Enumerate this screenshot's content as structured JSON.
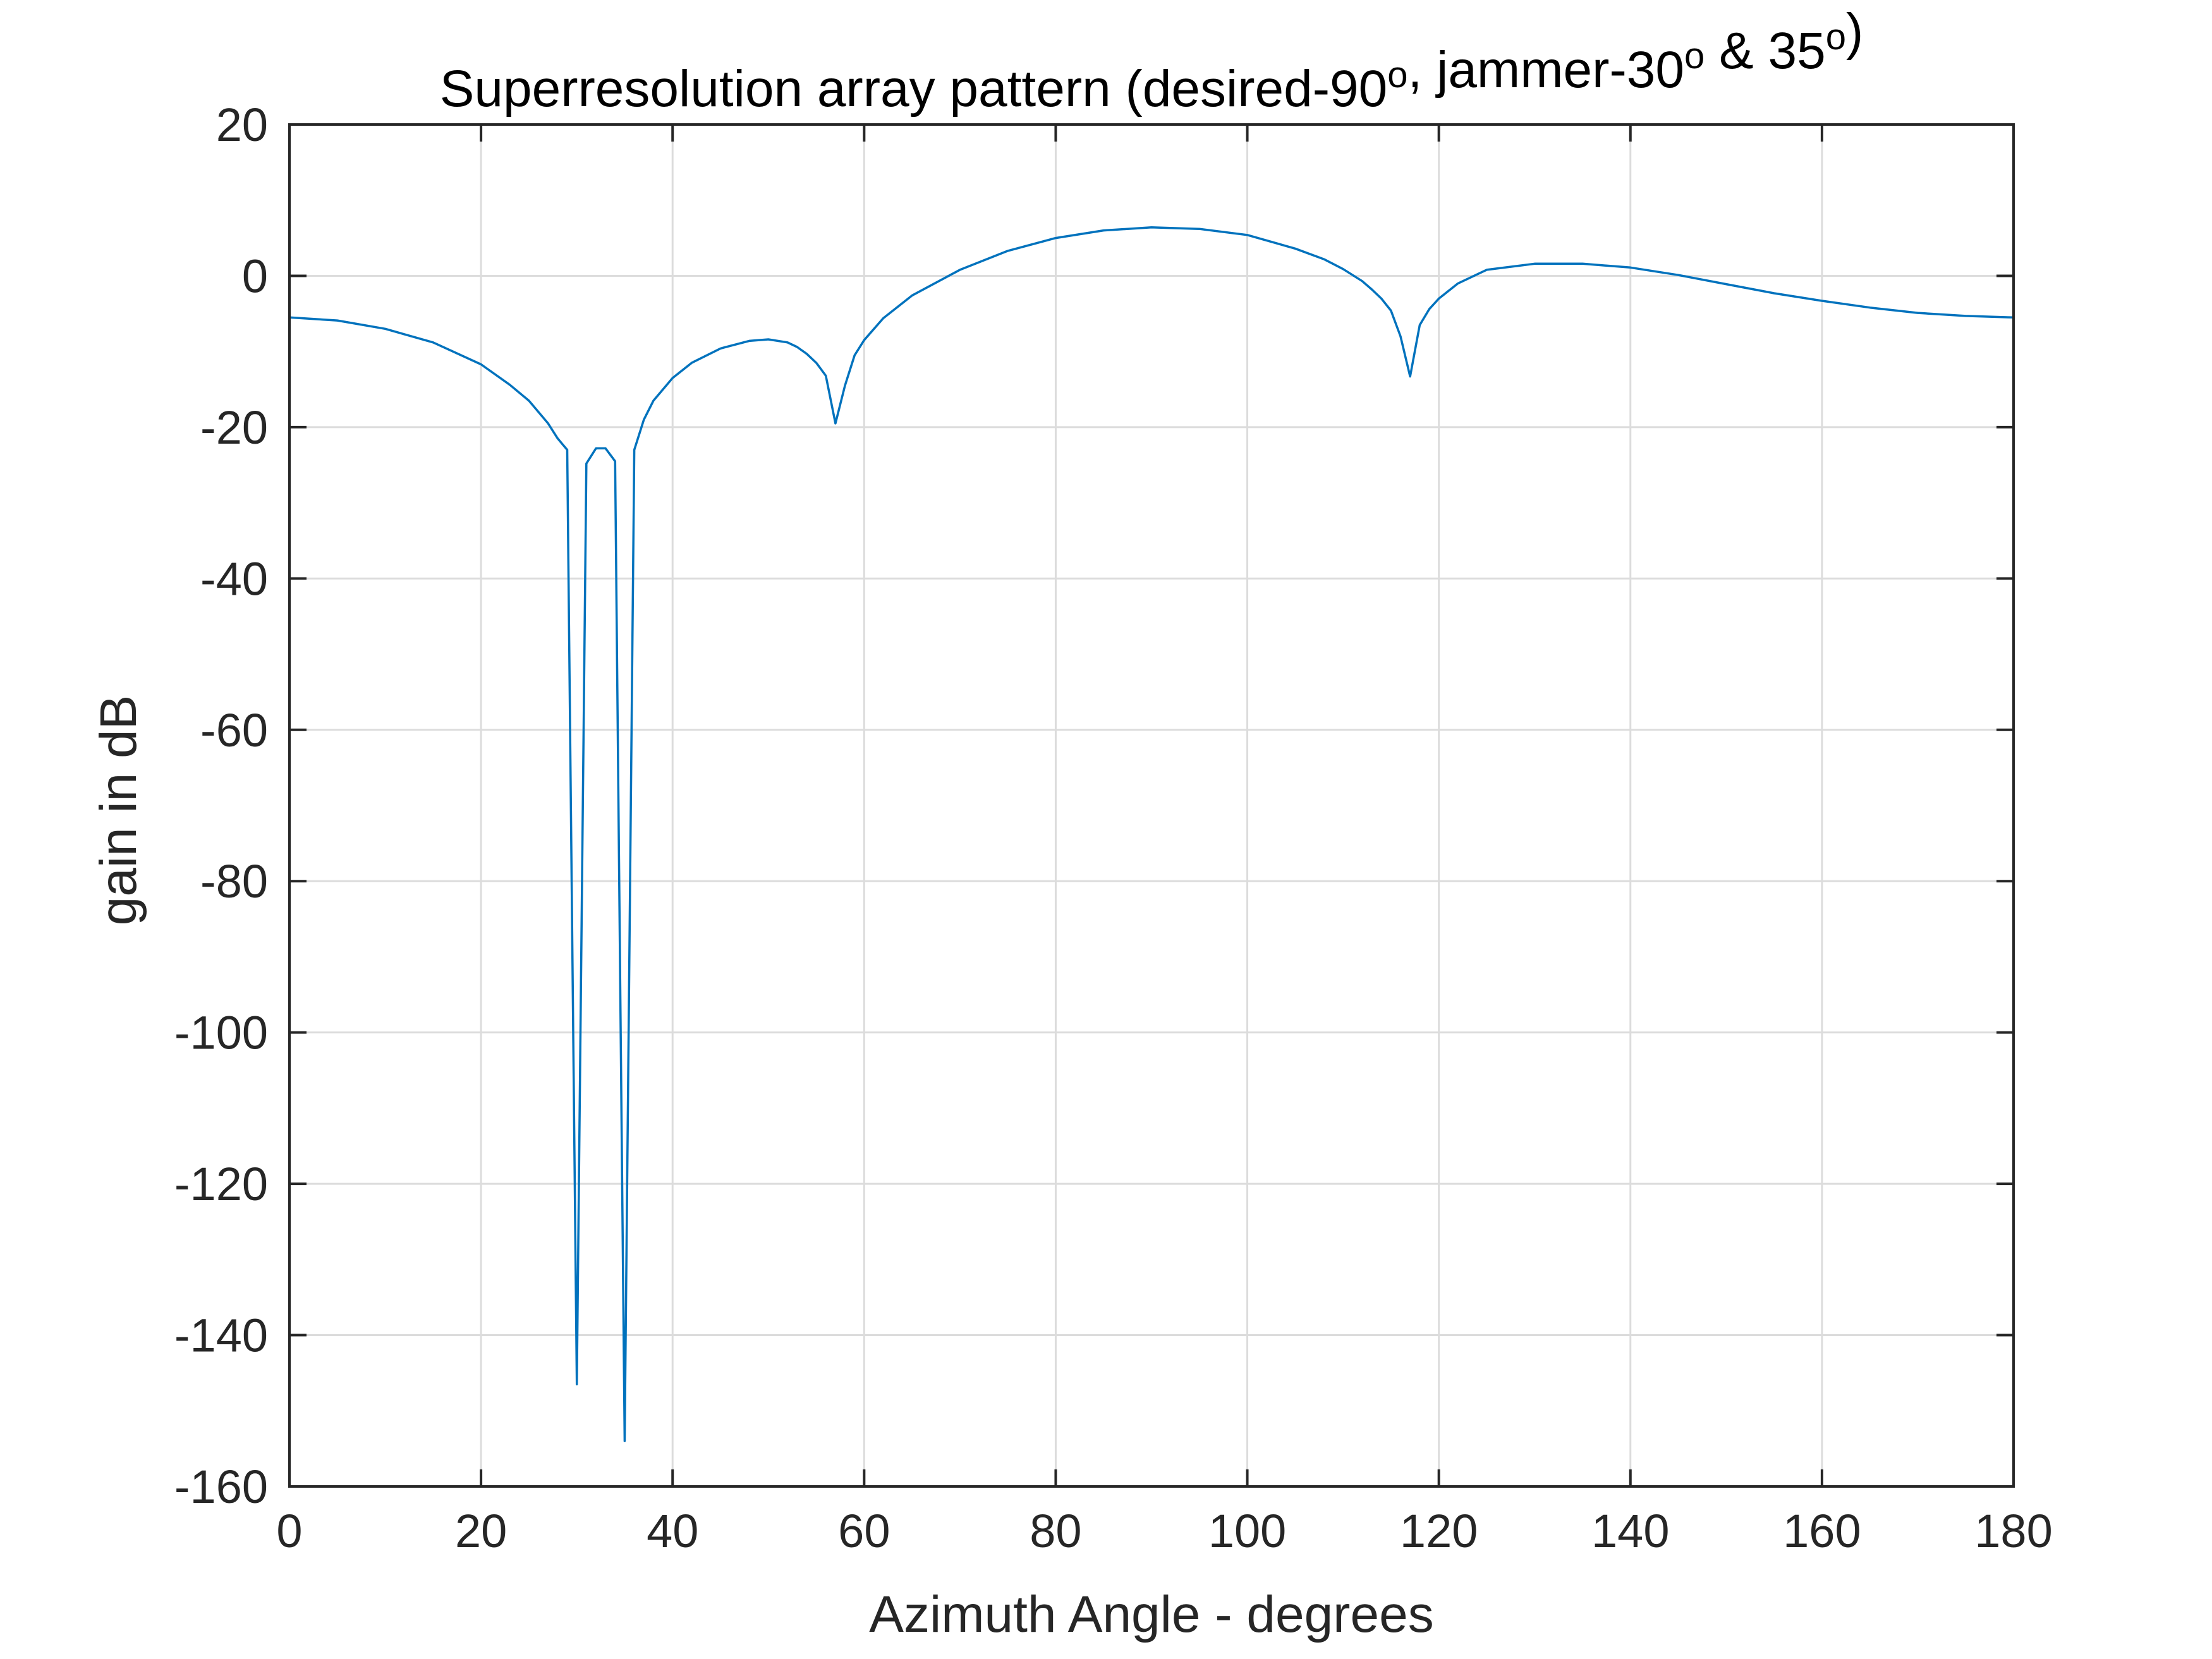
{
  "chart_data": {
    "type": "line",
    "title": "Superresolution array pattern (desired-90o, jammer-30o & 35o)",
    "title_parts": [
      {
        "text": "Superresolution array pattern (desired-90"
      },
      {
        "text": "o",
        "sup": true
      },
      {
        "text": ", jammer-30"
      },
      {
        "text": "o",
        "sup": true
      },
      {
        "text": " & 35"
      },
      {
        "text": "o",
        "sup": true
      },
      {
        "text": ")"
      }
    ],
    "xlabel": "Azimuth Angle - degrees",
    "ylabel": "gain in dB",
    "xlim": [
      0,
      180
    ],
    "ylim": [
      -160,
      20
    ],
    "xticks": [
      0,
      20,
      40,
      60,
      80,
      100,
      120,
      140,
      160,
      180
    ],
    "yticks": [
      20,
      0,
      -20,
      -40,
      -60,
      -80,
      -100,
      -120,
      -140,
      -160
    ],
    "xtick_labels": [
      "0",
      "20",
      "40",
      "60",
      "80",
      "100",
      "120",
      "140",
      "160",
      "180"
    ],
    "ytick_labels": [
      "20",
      "0",
      "-20",
      "-40",
      "-60",
      "-80",
      "-100",
      "-120",
      "-140",
      "-160"
    ],
    "grid": true,
    "colors": {
      "line": "#0072BD",
      "grid": "#DCDCDC",
      "axes": "#262626"
    },
    "series": [
      {
        "x": [
          0,
          5,
          10,
          15,
          20,
          23,
          25,
          27,
          28,
          29,
          30,
          31,
          32,
          33,
          34,
          35,
          36,
          37,
          38,
          40,
          42,
          45,
          48,
          50,
          52,
          53,
          54,
          55,
          56,
          57,
          58,
          59,
          60,
          62,
          65,
          70,
          75,
          80,
          85,
          90,
          95,
          100,
          105,
          108,
          110,
          112,
          113,
          114,
          115,
          116,
          117,
          118,
          119,
          120,
          122,
          125,
          130,
          135,
          140,
          145,
          150,
          155,
          160,
          165,
          170,
          175,
          180
        ],
        "y": [
          -5.5,
          -5.9,
          -7.0,
          -8.8,
          -11.7,
          -14.4,
          -16.5,
          -19.5,
          -21.5,
          -23.0,
          -146.5,
          -24.8,
          -22.8,
          -22.8,
          -24.5,
          -154.0,
          -23.0,
          -19.0,
          -16.5,
          -13.5,
          -11.5,
          -9.6,
          -8.6,
          -8.4,
          -8.8,
          -9.4,
          -10.3,
          -11.5,
          -13.2,
          -19.5,
          -14.5,
          -10.5,
          -8.5,
          -5.6,
          -2.6,
          0.8,
          3.3,
          5.0,
          6.0,
          6.4,
          6.2,
          5.4,
          3.6,
          2.2,
          0.9,
          -0.7,
          -1.8,
          -3.0,
          -4.6,
          -8.0,
          -13.3,
          -6.5,
          -4.4,
          -3.0,
          -1.0,
          0.8,
          1.6,
          1.6,
          1.1,
          0.1,
          -1.1,
          -2.3,
          -3.3,
          -4.2,
          -4.9,
          -5.3,
          -5.5
        ]
      }
    ]
  }
}
